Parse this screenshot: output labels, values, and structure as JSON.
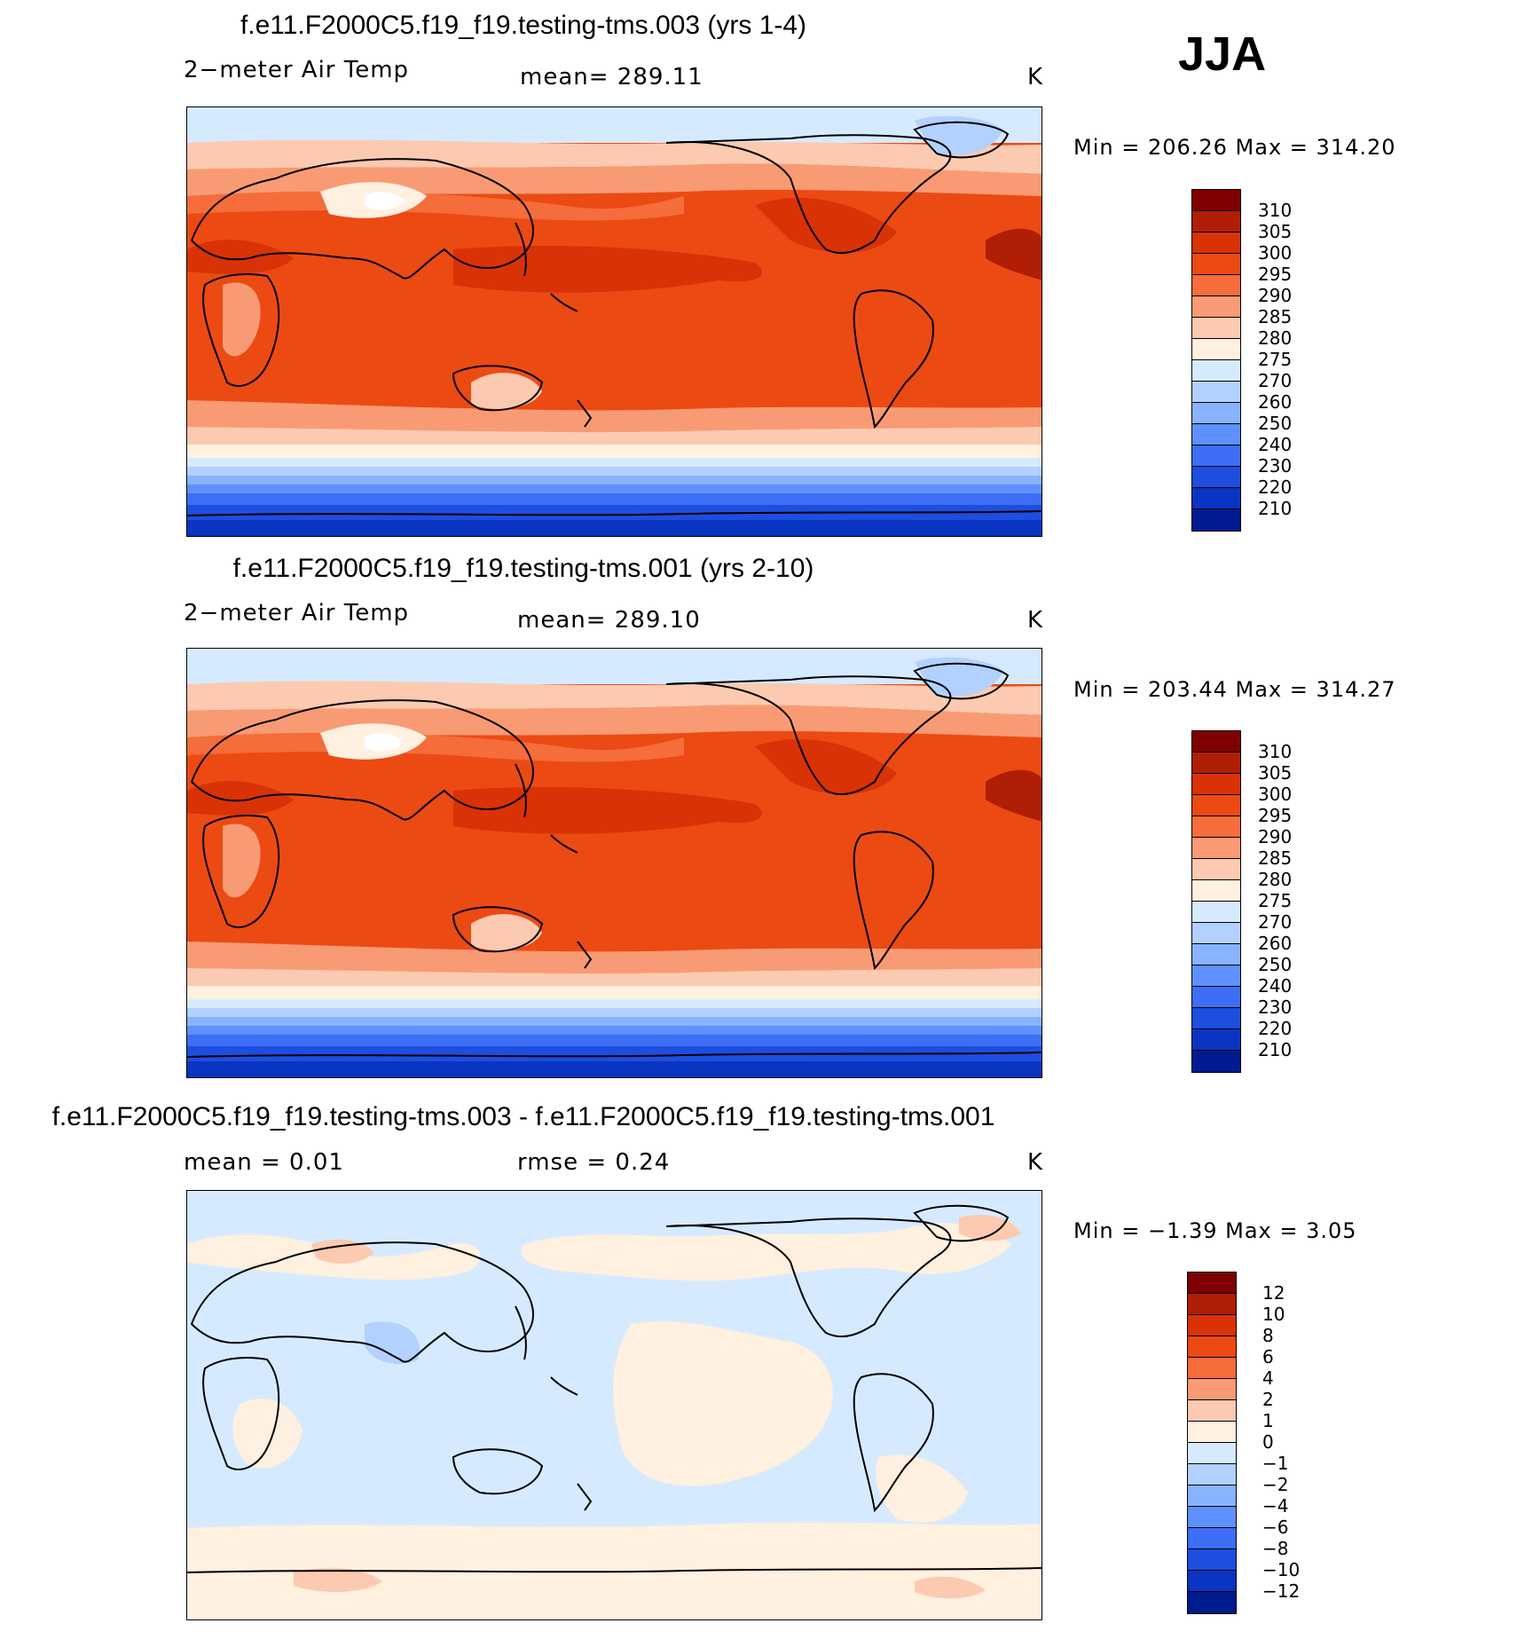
{
  "season": "JJA",
  "panels": [
    {
      "id": "panel1",
      "title": "f.e11.F2000C5.f19_f19.testing-tms.003 (yrs 1-4)",
      "left_label": "2−meter Air Temp",
      "center_label": "mean=  289.11",
      "right_label": "K",
      "minmax": "Min  =  206.26  Max  =  314.20",
      "kind": "abs"
    },
    {
      "id": "panel2",
      "title": "f.e11.F2000C5.f19_f19.testing-tms.001 (yrs 2-10)",
      "left_label": "2−meter Air Temp",
      "center_label": "mean=  289.10",
      "right_label": "K",
      "minmax": "Min  =  203.44  Max  =  314.27",
      "kind": "abs"
    },
    {
      "id": "panel3",
      "title": "f.e11.F2000C5.f19_f19.testing-tms.003 - f.e11.F2000C5.f19_f19.testing-tms.001",
      "left_label": "mean  =     0.01",
      "center_label": "rmse  =     0.24",
      "right_label": "K",
      "minmax": "Min  =    −1.39  Max  =      3.05",
      "kind": "diff"
    }
  ],
  "colorbars": {
    "abs": {
      "labels": [
        "310",
        "305",
        "300",
        "295",
        "290",
        "285",
        "280",
        "275",
        "270",
        "260",
        "250",
        "240",
        "230",
        "220",
        "210"
      ],
      "colors": [
        "#7f0000",
        "#b01e05",
        "#d93206",
        "#ec4a13",
        "#f46d3a",
        "#f89b74",
        "#fbcab0",
        "#fff0e0",
        "#d6eaff",
        "#b3d1ff",
        "#89b3ff",
        "#5e91ff",
        "#3d6ef5",
        "#1e4ee0",
        "#0a34c2",
        "#001a8f"
      ]
    },
    "diff": {
      "labels": [
        "12",
        "10",
        "8",
        "6",
        "4",
        "2",
        "1",
        "0",
        "−1",
        "−2",
        "−4",
        "−6",
        "−8",
        "−10",
        "−12"
      ],
      "colors": [
        "#7f0000",
        "#b01e05",
        "#d93206",
        "#ec4a13",
        "#f46d3a",
        "#f89b74",
        "#fbcab0",
        "#fff0e0",
        "#d6eaff",
        "#b3d1ff",
        "#89b3ff",
        "#5e91ff",
        "#3d6ef5",
        "#1e4ee0",
        "#0a34c2",
        "#001a8f"
      ]
    }
  }
}
